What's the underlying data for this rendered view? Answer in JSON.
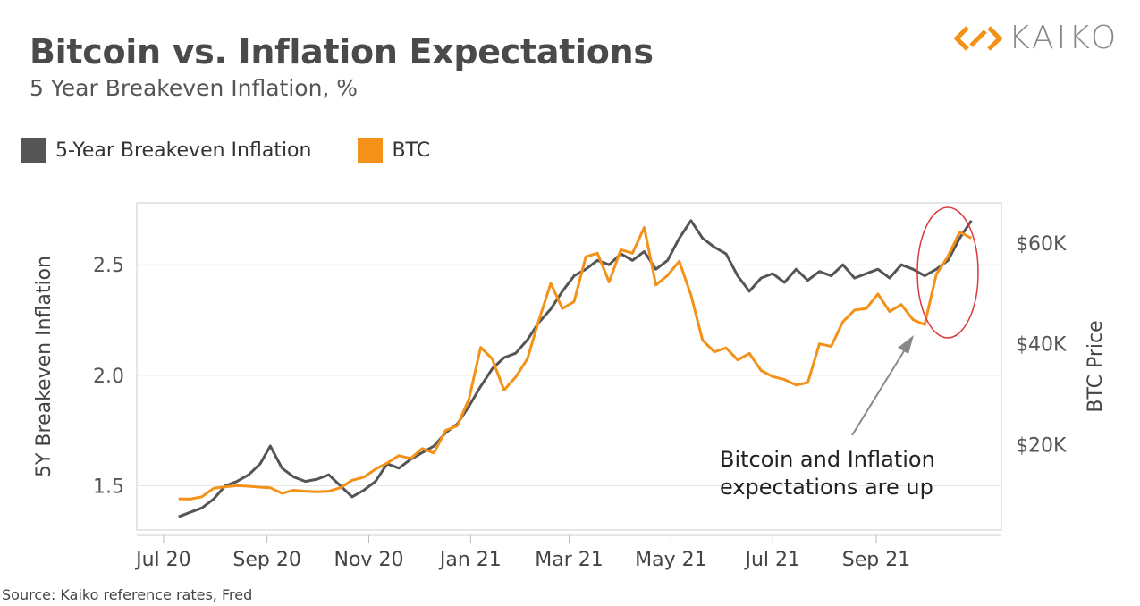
{
  "header": {
    "title": "Bitcoin vs. Inflation Expectations",
    "subtitle": "5 Year Breakeven Inflation, %",
    "logo_text": "KAIKO"
  },
  "source": "Source: Kaiko reference rates, Fred",
  "colors": {
    "inflation": "#555555",
    "btc": "#f39118",
    "highlight": "#d93a3a",
    "arrow": "#888888"
  },
  "chart_data": {
    "type": "line",
    "title": "Bitcoin vs. Inflation Expectations",
    "subtitle": "5 Year Breakeven Inflation, %",
    "ylabel": "5Y Breakeven Inflation",
    "y2label": "BTC Price",
    "legend_position": "top-left",
    "grid": true,
    "x_range": [
      "2020-06-15",
      "2021-11-15"
    ],
    "x_ticks": [
      {
        "date": "2020-07-01",
        "label": "Jul 20"
      },
      {
        "date": "2020-09-01",
        "label": "Sep 20"
      },
      {
        "date": "2020-11-01",
        "label": "Nov 20"
      },
      {
        "date": "2021-01-01",
        "label": "Jan 21"
      },
      {
        "date": "2021-03-01",
        "label": "Mar 21"
      },
      {
        "date": "2021-05-01",
        "label": "May 21"
      },
      {
        "date": "2021-07-01",
        "label": "Jul 21"
      },
      {
        "date": "2021-09-01",
        "label": "Sep 21"
      }
    ],
    "y_range": [
      1.3,
      2.78
    ],
    "y_ticks": [
      {
        "value": 1.5,
        "label": "1.5"
      },
      {
        "value": 2.0,
        "label": "2.0"
      },
      {
        "value": 2.5,
        "label": "2.5"
      }
    ],
    "y2_range": [
      3000,
      68000
    ],
    "y2_ticks": [
      {
        "value": 20000,
        "label": "$20K"
      },
      {
        "value": 40000,
        "label": "$40K"
      },
      {
        "value": 60000,
        "label": "$60K"
      }
    ],
    "series": [
      {
        "name": "5-Year Breakeven Inflation",
        "axis": "left",
        "points": [
          [
            "2020-07-10",
            1.36
          ],
          [
            "2020-07-17",
            1.38
          ],
          [
            "2020-07-24",
            1.4
          ],
          [
            "2020-07-31",
            1.44
          ],
          [
            "2020-08-07",
            1.5
          ],
          [
            "2020-08-14",
            1.52
          ],
          [
            "2020-08-21",
            1.55
          ],
          [
            "2020-08-28",
            1.6
          ],
          [
            "2020-09-03",
            1.68
          ],
          [
            "2020-09-10",
            1.58
          ],
          [
            "2020-09-17",
            1.54
          ],
          [
            "2020-09-24",
            1.52
          ],
          [
            "2020-10-01",
            1.53
          ],
          [
            "2020-10-08",
            1.55
          ],
          [
            "2020-10-15",
            1.5
          ],
          [
            "2020-10-22",
            1.45
          ],
          [
            "2020-10-29",
            1.48
          ],
          [
            "2020-11-05",
            1.52
          ],
          [
            "2020-11-12",
            1.6
          ],
          [
            "2020-11-19",
            1.58
          ],
          [
            "2020-11-26",
            1.62
          ],
          [
            "2020-12-03",
            1.65
          ],
          [
            "2020-12-10",
            1.68
          ],
          [
            "2020-12-17",
            1.74
          ],
          [
            "2020-12-24",
            1.78
          ],
          [
            "2020-12-31",
            1.86
          ],
          [
            "2021-01-07",
            1.95
          ],
          [
            "2021-01-14",
            2.03
          ],
          [
            "2021-01-21",
            2.08
          ],
          [
            "2021-01-28",
            2.1
          ],
          [
            "2021-02-04",
            2.16
          ],
          [
            "2021-02-11",
            2.24
          ],
          [
            "2021-02-18",
            2.3
          ],
          [
            "2021-02-25",
            2.38
          ],
          [
            "2021-03-04",
            2.45
          ],
          [
            "2021-03-11",
            2.48
          ],
          [
            "2021-03-18",
            2.52
          ],
          [
            "2021-03-25",
            2.5
          ],
          [
            "2021-04-01",
            2.55
          ],
          [
            "2021-04-08",
            2.52
          ],
          [
            "2021-04-15",
            2.56
          ],
          [
            "2021-04-22",
            2.48
          ],
          [
            "2021-04-29",
            2.52
          ],
          [
            "2021-05-06",
            2.62
          ],
          [
            "2021-05-13",
            2.7
          ],
          [
            "2021-05-20",
            2.62
          ],
          [
            "2021-05-27",
            2.58
          ],
          [
            "2021-06-03",
            2.55
          ],
          [
            "2021-06-10",
            2.45
          ],
          [
            "2021-06-17",
            2.38
          ],
          [
            "2021-06-24",
            2.44
          ],
          [
            "2021-07-01",
            2.46
          ],
          [
            "2021-07-08",
            2.42
          ],
          [
            "2021-07-15",
            2.48
          ],
          [
            "2021-07-22",
            2.43
          ],
          [
            "2021-07-29",
            2.47
          ],
          [
            "2021-08-05",
            2.45
          ],
          [
            "2021-08-12",
            2.5
          ],
          [
            "2021-08-19",
            2.44
          ],
          [
            "2021-08-26",
            2.46
          ],
          [
            "2021-09-02",
            2.48
          ],
          [
            "2021-09-09",
            2.44
          ],
          [
            "2021-09-16",
            2.5
          ],
          [
            "2021-09-23",
            2.48
          ],
          [
            "2021-09-30",
            2.45
          ],
          [
            "2021-10-07",
            2.48
          ],
          [
            "2021-10-14",
            2.52
          ],
          [
            "2021-10-21",
            2.62
          ],
          [
            "2021-10-28",
            2.7
          ]
        ]
      },
      {
        "name": "BTC",
        "axis": "right",
        "points": [
          [
            "2020-07-10",
            9200
          ],
          [
            "2020-07-17",
            9150
          ],
          [
            "2020-07-24",
            9600
          ],
          [
            "2020-07-31",
            11300
          ],
          [
            "2020-08-07",
            11600
          ],
          [
            "2020-08-14",
            11800
          ],
          [
            "2020-08-21",
            11700
          ],
          [
            "2020-08-28",
            11500
          ],
          [
            "2020-09-03",
            11400
          ],
          [
            "2020-09-10",
            10300
          ],
          [
            "2020-09-17",
            10900
          ],
          [
            "2020-09-24",
            10700
          ],
          [
            "2020-10-01",
            10600
          ],
          [
            "2020-10-08",
            10700
          ],
          [
            "2020-10-15",
            11400
          ],
          [
            "2020-10-22",
            12900
          ],
          [
            "2020-10-29",
            13500
          ],
          [
            "2020-11-05",
            15100
          ],
          [
            "2020-11-12",
            16300
          ],
          [
            "2020-11-19",
            17800
          ],
          [
            "2020-11-26",
            17200
          ],
          [
            "2020-12-03",
            19200
          ],
          [
            "2020-12-10",
            18300
          ],
          [
            "2020-12-17",
            22800
          ],
          [
            "2020-12-24",
            23700
          ],
          [
            "2020-12-31",
            29000
          ],
          [
            "2021-01-07",
            39300
          ],
          [
            "2021-01-14",
            37000
          ],
          [
            "2021-01-21",
            30800
          ],
          [
            "2021-01-28",
            33400
          ],
          [
            "2021-02-04",
            37000
          ],
          [
            "2021-02-11",
            44800
          ],
          [
            "2021-02-18",
            52000
          ],
          [
            "2021-02-25",
            47000
          ],
          [
            "2021-03-04",
            48400
          ],
          [
            "2021-03-11",
            57300
          ],
          [
            "2021-03-18",
            58000
          ],
          [
            "2021-03-25",
            52300
          ],
          [
            "2021-04-01",
            58700
          ],
          [
            "2021-04-08",
            58000
          ],
          [
            "2021-04-15",
            63100
          ],
          [
            "2021-04-22",
            51700
          ],
          [
            "2021-04-29",
            53600
          ],
          [
            "2021-05-06",
            56400
          ],
          [
            "2021-05-13",
            49700
          ],
          [
            "2021-05-20",
            40700
          ],
          [
            "2021-05-27",
            38400
          ],
          [
            "2021-06-03",
            39200
          ],
          [
            "2021-06-10",
            36800
          ],
          [
            "2021-06-17",
            38100
          ],
          [
            "2021-06-24",
            34700
          ],
          [
            "2021-07-01",
            33500
          ],
          [
            "2021-07-08",
            32900
          ],
          [
            "2021-07-15",
            31800
          ],
          [
            "2021-07-22",
            32300
          ],
          [
            "2021-07-29",
            40000
          ],
          [
            "2021-08-05",
            39500
          ],
          [
            "2021-08-12",
            44400
          ],
          [
            "2021-08-19",
            46700
          ],
          [
            "2021-08-26",
            47000
          ],
          [
            "2021-09-02",
            49900
          ],
          [
            "2021-09-09",
            46400
          ],
          [
            "2021-09-16",
            47800
          ],
          [
            "2021-09-23",
            44800
          ],
          [
            "2021-09-30",
            43800
          ],
          [
            "2021-10-07",
            53800
          ],
          [
            "2021-10-14",
            57400
          ],
          [
            "2021-10-21",
            62200
          ],
          [
            "2021-10-28",
            61000
          ]
        ]
      }
    ],
    "annotations": [
      {
        "text": [
          "Bitcoin and Inflation",
          "expectations are up"
        ]
      }
    ]
  }
}
